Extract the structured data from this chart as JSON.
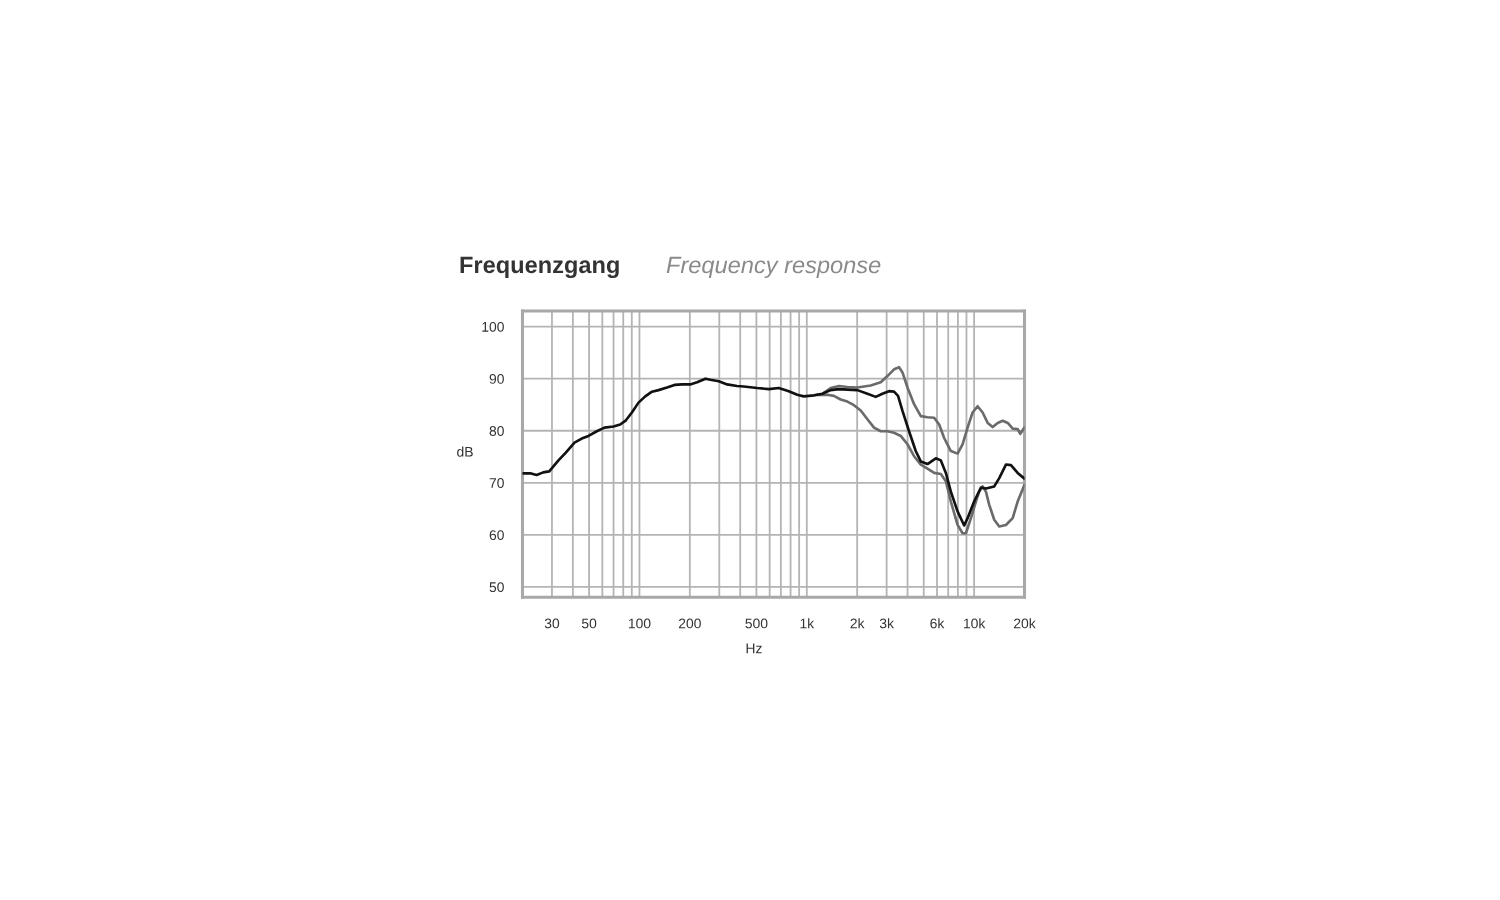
{
  "chart_data": {
    "type": "line",
    "title": "Frequenzgang",
    "subtitle": "Frequency response",
    "xlabel": "Hz",
    "ylabel": "dB",
    "log": "x",
    "xlim": [
      20,
      20000
    ],
    "ylim": [
      48,
      103
    ],
    "xticks": [
      30,
      {
        "value": 40,
        "label": null
      },
      50,
      {
        "value": 60,
        "label": null
      },
      {
        "value": 70,
        "label": null
      },
      {
        "value": 80,
        "label": null
      },
      {
        "value": 90,
        "label": null
      },
      100,
      200,
      {
        "value": 300,
        "label": null
      },
      {
        "value": 400,
        "label": null
      },
      500,
      {
        "value": 600,
        "label": null
      },
      {
        "value": 700,
        "label": null
      },
      {
        "value": 800,
        "label": null
      },
      {
        "value": 900,
        "label": null
      },
      {
        "value": 1000,
        "label": "1k"
      },
      {
        "value": 2000,
        "label": "2k"
      },
      {
        "value": 3000,
        "label": "3k"
      },
      {
        "value": 4000,
        "label": null
      },
      {
        "value": 5000,
        "label": null
      },
      {
        "value": 6000,
        "label": "6k"
      },
      {
        "value": 7000,
        "label": null
      },
      {
        "value": 8000,
        "label": null
      },
      {
        "value": 9000,
        "label": null
      },
      {
        "value": 10000,
        "label": "10k"
      },
      {
        "value": 20000,
        "label": "20k"
      }
    ],
    "yticks": [
      50,
      60,
      70,
      80,
      90,
      100
    ],
    "grid": true,
    "line_style": "solid",
    "series": [
      {
        "color": "#6b6b6b",
        "x": [
          1155,
          1326,
          1452,
          1593,
          1748,
          1914,
          2100,
          2303,
          2522,
          2766,
          3033,
          3323,
          3644,
          3996,
          4377,
          4800,
          5263,
          5768,
          6325,
          6776,
          7260,
          7962,
          8530,
          8930,
          9570,
          10250,
          10730,
          11240,
          11760,
          12300,
          13190,
          14130,
          15490,
          17000,
          18200,
          20000
        ],
        "values": [
          86.9,
          86.9,
          86.7,
          86.0,
          85.6,
          84.9,
          83.9,
          82.2,
          80.6,
          79.9,
          79.9,
          79.6,
          79.0,
          77.4,
          75.1,
          73.5,
          72.7,
          71.9,
          71.7,
          70.3,
          66.4,
          61.9,
          60.3,
          60.3,
          63.2,
          66.4,
          68.3,
          69.3,
          68.3,
          65.8,
          62.9,
          61.6,
          61.9,
          63.2,
          66.4,
          69.6
        ]
      },
      {
        "color": "#6b6b6b",
        "x": [
          1265,
          1388,
          1557,
          1748,
          2005,
          2410,
          2766,
          3033,
          3323,
          3560,
          3731,
          3996,
          4377,
          4800,
          5263,
          5768,
          6180,
          6620,
          7260,
          7962,
          8530,
          9140,
          9790,
          10490,
          11240,
          12050,
          12910,
          13830,
          14820,
          15880,
          17000,
          18200,
          18870,
          20000
        ],
        "values": [
          87.3,
          88.2,
          88.6,
          88.4,
          88.3,
          88.7,
          89.3,
          90.5,
          91.8,
          92.2,
          91.2,
          88.3,
          85.1,
          82.8,
          82.6,
          82.5,
          81.2,
          78.6,
          76.1,
          75.6,
          77.4,
          80.6,
          83.5,
          84.7,
          83.5,
          81.5,
          80.7,
          81.5,
          81.9,
          81.5,
          80.4,
          80.3,
          79.4,
          80.6
        ]
      },
      {
        "color": "#111111",
        "x": [
          20,
          22.5,
          24.3,
          26.6,
          28.9,
          32.8,
          36.3,
          40.9,
          45.2,
          49.6,
          55.6,
          61.8,
          70,
          76.7,
          83,
          90.1,
          98.7,
          108.3,
          118.8,
          130,
          146,
          162,
          180,
          201,
          221,
          248,
          265,
          298,
          334,
          383,
          420,
          505,
          593,
          680,
          781,
          877,
          960,
          1102,
          1238,
          1388,
          1557,
          1748,
          2005,
          2303,
          2581,
          2831,
          3100,
          3323,
          3510,
          3731,
          4084,
          4478,
          4800,
          5263,
          5903,
          6325,
          6776,
          7260,
          7962,
          8720,
          9140,
          10000,
          10980,
          11760,
          13190,
          14130,
          15490,
          16600,
          18200,
          20000
        ],
        "values": [
          71.8,
          71.8,
          71.5,
          72.0,
          72.2,
          74.3,
          75.8,
          77.7,
          78.5,
          79.0,
          79.9,
          80.6,
          80.8,
          81.2,
          82.0,
          83.5,
          85.4,
          86.6,
          87.5,
          87.8,
          88.3,
          88.8,
          88.9,
          88.9,
          89.3,
          90.0,
          89.8,
          89.5,
          88.9,
          88.6,
          88.5,
          88.2,
          88.0,
          88.2,
          87.6,
          86.9,
          86.6,
          86.8,
          87.1,
          87.8,
          88.0,
          87.9,
          87.8,
          87.1,
          86.5,
          87.1,
          87.6,
          87.5,
          86.7,
          83.8,
          79.9,
          76.1,
          74.1,
          73.6,
          74.7,
          74.3,
          71.9,
          68.3,
          64.5,
          61.8,
          63.2,
          66.4,
          69.1,
          68.9,
          69.3,
          70.9,
          73.5,
          73.4,
          71.9,
          70.8
        ]
      }
    ]
  }
}
